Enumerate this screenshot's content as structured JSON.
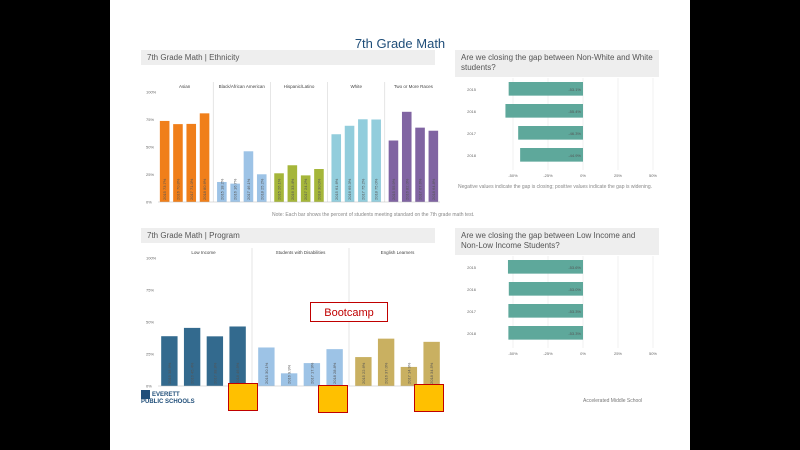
{
  "slide": {
    "title": "7th Grade Math",
    "callout": "Bootcamp",
    "logo_line1": "EVERETT",
    "logo_line2": "PUBLIC SCHOOLS",
    "footer": "Accelerated Middle School",
    "note1": "Note: Each bar shows the percent of students meeting standard on the 7th grade math test.",
    "note2": "Negative values indicate the gap is closing; positive values indicate the gap is widening."
  },
  "colors": {
    "ethnicity": [
      "#f07f1a",
      "#9dc3e6",
      "#a5b63a",
      "#92cddc",
      "#8064a2"
    ],
    "program": [
      "#336a8e",
      "#9dc3e6",
      "#c9b061"
    ],
    "gap_bar": "#5ea89b",
    "callout_border": "#c00000",
    "highlight_box": "#ffc000"
  },
  "chart_data": [
    {
      "type": "bar",
      "title": "7th Grade Math | Ethnicity",
      "ylim": [
        0,
        100
      ],
      "yticks": [
        "0%",
        "25%",
        "50%",
        "75%",
        "100%"
      ],
      "groups": [
        {
          "name": "Asian",
          "x": [
            "2015",
            "2016",
            "2017",
            "2018"
          ],
          "values": [
            73.7,
            70.8,
            71.0,
            80.6
          ]
        },
        {
          "name": "Black/African American",
          "x": [
            "2015",
            "2016",
            "2017",
            "2018"
          ],
          "values": [
            18.2,
            16.7,
            46.1,
            25.2
          ]
        },
        {
          "name": "Hispanic/Latino",
          "x": [
            "2015",
            "2016",
            "2017",
            "2018"
          ],
          "values": [
            26.1,
            33.4,
            24.2,
            30.0
          ]
        },
        {
          "name": "White",
          "x": [
            "2015",
            "2016",
            "2017",
            "2018"
          ],
          "values": [
            61.6,
            69.3,
            75.2,
            75.0
          ]
        },
        {
          "name": "Two or More Races",
          "x": [
            "2015",
            "2016",
            "2017",
            "2018"
          ],
          "values": [
            55.9,
            82.0,
            67.6,
            64.8
          ]
        }
      ]
    },
    {
      "type": "bar",
      "title": "Are we closing the gap between Non-White and White students?",
      "orientation": "horizontal",
      "categories": [
        "2015",
        "2016",
        "2017",
        "2018"
      ],
      "values": [
        -53.1,
        -55.4,
        -46.3,
        -44.9
      ],
      "labels": [
        "-53.1%",
        "-55.4%",
        "-46.3%",
        "-44.9%"
      ],
      "xticks": [
        "-50%",
        "-25%",
        "0%",
        "25%",
        "50%"
      ],
      "xlim": [
        -75,
        50
      ]
    },
    {
      "type": "bar",
      "title": "7th Grade Math | Program",
      "ylim": [
        0,
        100
      ],
      "yticks": [
        "0%",
        "25%",
        "50%",
        "75%",
        "100%"
      ],
      "groups": [
        {
          "name": "Low Income",
          "x": [
            "2015",
            "2016",
            "2017",
            "2018"
          ],
          "values": [
            38.9,
            45.4,
            38.8,
            46.5
          ]
        },
        {
          "name": "Students with Disabilities",
          "x": [
            "2015",
            "2016",
            "2017",
            "2018"
          ],
          "values": [
            30.1,
            9.9,
            17.9,
            28.8
          ]
        },
        {
          "name": "English Learners",
          "x": [
            "2015",
            "2016",
            "2017",
            "2018"
          ],
          "values": [
            22.6,
            37.0,
            14.9,
            34.5
          ]
        }
      ]
    },
    {
      "type": "bar",
      "title": "Are we closing the gap between Low Income and Non-Low Income Students?",
      "orientation": "horizontal",
      "categories": [
        "2015",
        "2016",
        "2017",
        "2018"
      ],
      "values": [
        -53.6,
        -53.0,
        -53.3,
        -53.3
      ],
      "labels": [
        "-53.6%",
        "-53.0%",
        "-53.3%",
        "-53.3%"
      ],
      "xticks": [
        "-50%",
        "-25%",
        "0%",
        "25%",
        "50%"
      ],
      "xlim": [
        -75,
        50
      ]
    }
  ]
}
